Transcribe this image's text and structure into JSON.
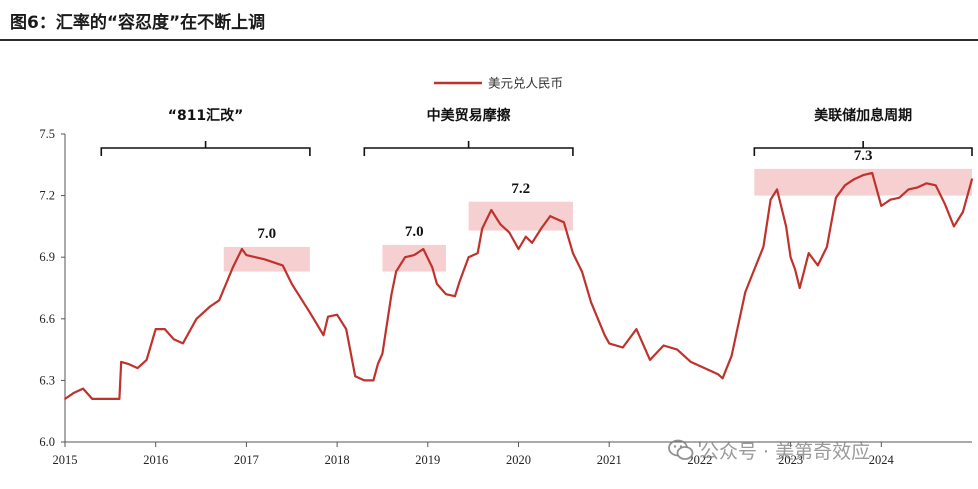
{
  "header": {
    "title": "图6：汇率的“容忍度”在不断上调"
  },
  "watermark": {
    "text": "公众号 · 美第奇效应",
    "icon": "wechat-icon"
  },
  "colors": {
    "series": "#c0322c",
    "band": "#f4c7c9",
    "axis": "#555555",
    "title_rule": "#2c2c2c"
  },
  "chart_data": {
    "type": "line",
    "title": "",
    "xlabel": "",
    "ylabel": "",
    "legend_position": "top-center",
    "grid": false,
    "xlim": [
      2015,
      2025.0
    ],
    "ylim": [
      6.0,
      7.5
    ],
    "x_ticks": [
      2015,
      2016,
      2017,
      2018,
      2019,
      2020,
      2021,
      2022,
      2023,
      2024
    ],
    "x_tick_labels": [
      "2015",
      "2016",
      "2017",
      "2018",
      "2019",
      "2020",
      "2021",
      "2022",
      "2023",
      "2024"
    ],
    "y_ticks": [
      6.0,
      6.3,
      6.6,
      6.9,
      7.2,
      7.5
    ],
    "y_tick_labels": [
      "6.0",
      "6.3",
      "6.6",
      "6.9",
      "7.2",
      "7.5"
    ],
    "series": [
      {
        "name": "美元兑人民币",
        "x": [
          2015.0,
          2015.1,
          2015.2,
          2015.3,
          2015.55,
          2015.6,
          2015.62,
          2015.7,
          2015.8,
          2015.9,
          2016.0,
          2016.1,
          2016.2,
          2016.3,
          2016.45,
          2016.6,
          2016.7,
          2016.85,
          2016.95,
          2017.0,
          2017.2,
          2017.4,
          2017.5,
          2017.7,
          2017.85,
          2017.9,
          2018.0,
          2018.1,
          2018.2,
          2018.3,
          2018.4,
          2018.45,
          2018.5,
          2018.6,
          2018.65,
          2018.75,
          2018.85,
          2018.95,
          2019.05,
          2019.1,
          2019.2,
          2019.3,
          2019.35,
          2019.45,
          2019.55,
          2019.6,
          2019.7,
          2019.8,
          2019.9,
          2020.0,
          2020.08,
          2020.15,
          2020.25,
          2020.35,
          2020.4,
          2020.5,
          2020.6,
          2020.7,
          2020.8,
          2020.95,
          2021.0,
          2021.15,
          2021.3,
          2021.45,
          2021.6,
          2021.75,
          2021.9,
          2022.0,
          2022.1,
          2022.2,
          2022.25,
          2022.35,
          2022.5,
          2022.6,
          2022.7,
          2022.78,
          2022.85,
          2022.95,
          2023.0,
          2023.05,
          2023.1,
          2023.2,
          2023.3,
          2023.4,
          2023.5,
          2023.6,
          2023.7,
          2023.8,
          2023.9,
          2024.0,
          2024.1,
          2024.2,
          2024.3,
          2024.4,
          2024.5,
          2024.6,
          2024.7,
          2024.8,
          2024.9,
          2025.0
        ],
        "values": [
          6.21,
          6.24,
          6.26,
          6.21,
          6.21,
          6.21,
          6.39,
          6.38,
          6.36,
          6.4,
          6.55,
          6.55,
          6.5,
          6.48,
          6.6,
          6.66,
          6.69,
          6.85,
          6.94,
          6.91,
          6.89,
          6.86,
          6.77,
          6.63,
          6.52,
          6.61,
          6.62,
          6.55,
          6.32,
          6.3,
          6.3,
          6.38,
          6.43,
          6.72,
          6.83,
          6.9,
          6.91,
          6.94,
          6.85,
          6.77,
          6.72,
          6.71,
          6.78,
          6.9,
          6.92,
          7.04,
          7.13,
          7.06,
          7.02,
          6.94,
          7.0,
          6.97,
          7.04,
          7.1,
          7.09,
          7.07,
          6.92,
          6.83,
          6.68,
          6.52,
          6.48,
          6.46,
          6.55,
          6.4,
          6.47,
          6.45,
          6.39,
          6.37,
          6.35,
          6.33,
          6.31,
          6.42,
          6.73,
          6.84,
          6.95,
          7.18,
          7.23,
          7.05,
          6.9,
          6.84,
          6.75,
          6.92,
          6.86,
          6.95,
          7.19,
          7.25,
          7.28,
          7.3,
          7.31,
          7.15,
          7.18,
          7.19,
          7.23,
          7.24,
          7.26,
          7.25,
          7.16,
          7.05,
          7.12,
          7.28
        ]
      }
    ],
    "annotations": {
      "periods": [
        {
          "label": "“811汇改”",
          "x_start": 2015.4,
          "x_end": 2017.7
        },
        {
          "label": "中美贸易摩擦",
          "x_start": 2018.3,
          "x_end": 2020.6
        },
        {
          "label": "美联储加息周期",
          "x_start": 2022.6,
          "x_end": 2025.0
        }
      ],
      "levels": [
        {
          "label": "7.0",
          "x_start": 2016.75,
          "x_end": 2017.7,
          "y_low": 6.83,
          "y_high": 6.95
        },
        {
          "label": "7.0",
          "x_start": 2018.5,
          "x_end": 2019.2,
          "y_low": 6.83,
          "y_high": 6.96
        },
        {
          "label": "7.2",
          "x_start": 2019.45,
          "x_end": 2020.6,
          "y_low": 7.03,
          "y_high": 7.17
        },
        {
          "label": "7.3",
          "x_start": 2022.6,
          "x_end": 2025.0,
          "y_low": 7.2,
          "y_high": 7.33
        }
      ]
    }
  }
}
